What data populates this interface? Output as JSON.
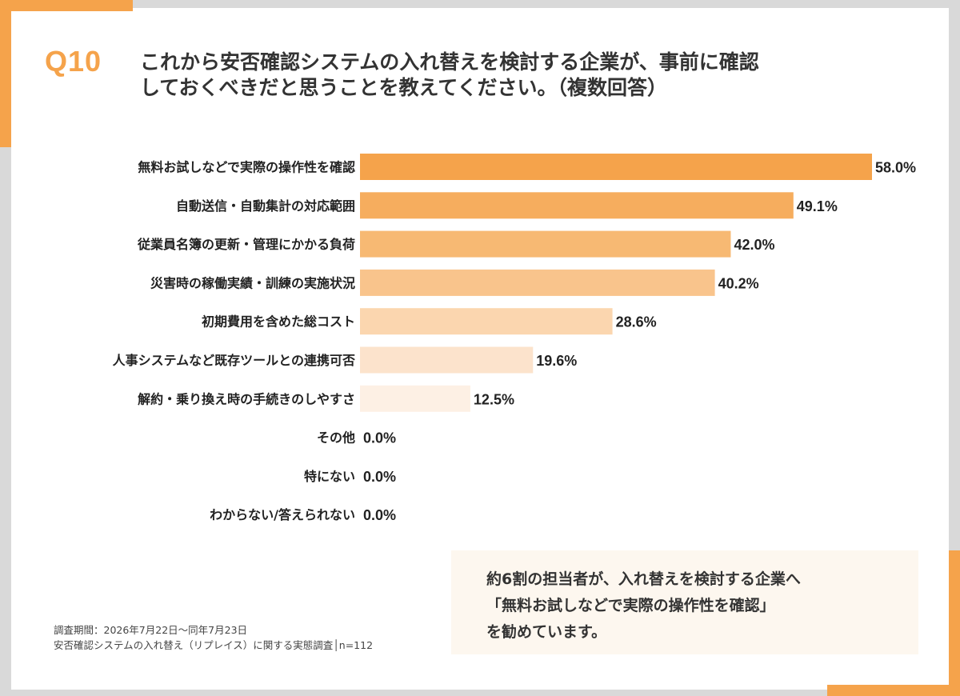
{
  "header": {
    "question_number": "Q10",
    "title_line1": "これから安否確認システムの入れ替えを検討する企業が、事前に確認",
    "title_line2": "しておくべきだと思うことを教えてください。（複数回答）"
  },
  "chart_data": {
    "type": "bar",
    "orientation": "horizontal",
    "categories": [
      "無料お試しなどで実際の操作性を確認",
      "自動送信・自動集計の対応範囲",
      "従業員名簿の更新・管理にかかる負荷",
      "災害時の稼働実績・訓練の実施状況",
      "初期費用を含めた総コスト",
      "人事システムなど既存ツールとの連携可否",
      "解約・乗り換え時の手続きのしやすさ",
      "その他",
      "特にない",
      "わからない/答えられない"
    ],
    "values": [
      58.0,
      49.1,
      42.0,
      40.2,
      28.6,
      19.6,
      12.5,
      0.0,
      0.0,
      0.0
    ],
    "value_labels": [
      "58.0%",
      "49.1%",
      "42.0%",
      "40.2%",
      "28.6%",
      "19.6%",
      "12.5%",
      "0.0%",
      "0.0%",
      "0.0%"
    ],
    "colors": [
      "#f5a34b",
      "#f6ad5e",
      "#f7b973",
      "#f9c48c",
      "#fbd6af",
      "#fce3cc",
      "#fdf0e4",
      "#fdf0e4",
      "#fdf0e4",
      "#fdf0e4"
    ],
    "xlim": [
      0,
      58.0
    ],
    "grid": false,
    "legend": "none"
  },
  "comment": {
    "line1": "約6割の担当者が、入れ替えを検討する企業へ",
    "line2": "「無料お試しなどで実際の操作性を確認」",
    "line3": "を勧めています。"
  },
  "footnote": {
    "line1": "調査期間：2026年7月22日～同年7月23日",
    "line2": "安否確認システムの入れ替え（リプレイス）に関する実態調査│n=112"
  },
  "colors": {
    "accent": "#f5a34b",
    "frame": "#d9d9d9",
    "comment_bg": "#fdf7ef"
  }
}
